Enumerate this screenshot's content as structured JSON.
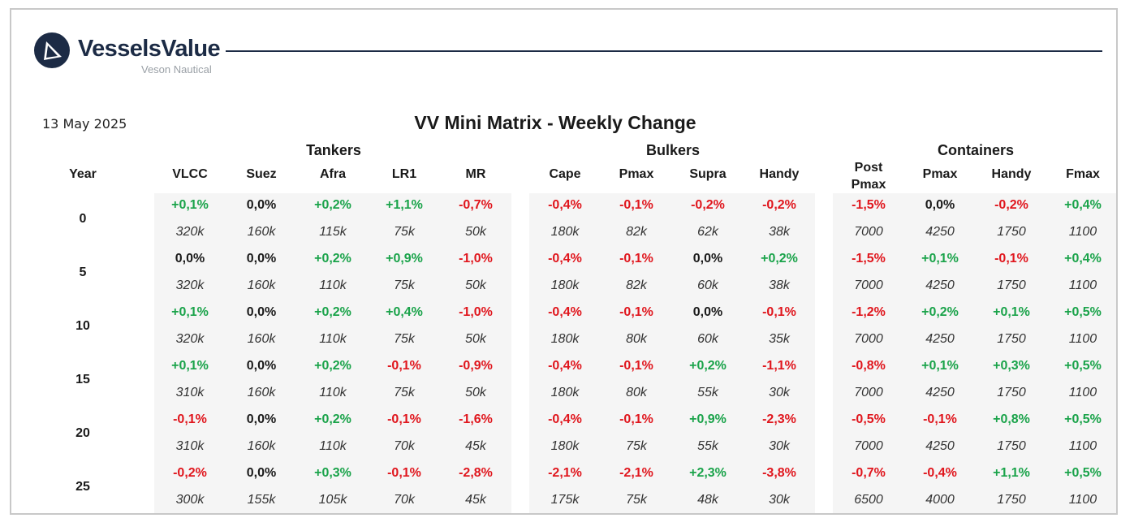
{
  "brand": {
    "name": "VesselsValue",
    "sub": "Veson Nautical"
  },
  "colors": {
    "positive": "#1aa34a",
    "negative": "#e0161d",
    "neutral": "#1a1a1a",
    "brand": "#1c2b45",
    "panel": "#f5f5f5"
  },
  "date": "13 May 2025",
  "title": "VV Mini Matrix - Weekly Change",
  "year_label": "Year",
  "groups": [
    "Tankers",
    "Bulkers",
    "Containers"
  ],
  "columns": [
    "VLCC",
    "Suez",
    "Afra",
    "LR1",
    "MR",
    "Cape",
    "Pmax",
    "Supra",
    "Handy",
    "Post Pmax",
    "Pmax",
    "Handy",
    "Fmax"
  ],
  "rows": [
    {
      "year": "0",
      "changes": [
        "+0,1%",
        "0,0%",
        "+0,2%",
        "+1,1%",
        "-0,7%",
        "-0,4%",
        "-0,1%",
        "-0,2%",
        "-0,2%",
        "-1,5%",
        "0,0%",
        "-0,2%",
        "+0,4%"
      ],
      "values": [
        "320k",
        "160k",
        "115k",
        "75k",
        "50k",
        "180k",
        "82k",
        "62k",
        "38k",
        "7000",
        "4250",
        "1750",
        "1100"
      ]
    },
    {
      "year": "5",
      "changes": [
        "0,0%",
        "0,0%",
        "+0,2%",
        "+0,9%",
        "-1,0%",
        "-0,4%",
        "-0,1%",
        "0,0%",
        "+0,2%",
        "-1,5%",
        "+0,1%",
        "-0,1%",
        "+0,4%"
      ],
      "values": [
        "320k",
        "160k",
        "110k",
        "75k",
        "50k",
        "180k",
        "82k",
        "60k",
        "38k",
        "7000",
        "4250",
        "1750",
        "1100"
      ]
    },
    {
      "year": "10",
      "changes": [
        "+0,1%",
        "0,0%",
        "+0,2%",
        "+0,4%",
        "-1,0%",
        "-0,4%",
        "-0,1%",
        "0,0%",
        "-0,1%",
        "-1,2%",
        "+0,2%",
        "+0,1%",
        "+0,5%"
      ],
      "values": [
        "320k",
        "160k",
        "110k",
        "75k",
        "50k",
        "180k",
        "80k",
        "60k",
        "35k",
        "7000",
        "4250",
        "1750",
        "1100"
      ]
    },
    {
      "year": "15",
      "changes": [
        "+0,1%",
        "0,0%",
        "+0,2%",
        "-0,1%",
        "-0,9%",
        "-0,4%",
        "-0,1%",
        "+0,2%",
        "-1,1%",
        "-0,8%",
        "+0,1%",
        "+0,3%",
        "+0,5%"
      ],
      "values": [
        "310k",
        "160k",
        "110k",
        "75k",
        "50k",
        "180k",
        "80k",
        "55k",
        "30k",
        "7000",
        "4250",
        "1750",
        "1100"
      ]
    },
    {
      "year": "20",
      "changes": [
        "-0,1%",
        "0,0%",
        "+0,2%",
        "-0,1%",
        "-1,6%",
        "-0,4%",
        "-0,1%",
        "+0,9%",
        "-2,3%",
        "-0,5%",
        "-0,1%",
        "+0,8%",
        "+0,5%"
      ],
      "values": [
        "310k",
        "160k",
        "110k",
        "70k",
        "45k",
        "180k",
        "75k",
        "55k",
        "30k",
        "7000",
        "4250",
        "1750",
        "1100"
      ]
    },
    {
      "year": "25",
      "changes": [
        "-0,2%",
        "0,0%",
        "+0,3%",
        "-0,1%",
        "-2,8%",
        "-2,1%",
        "-2,1%",
        "+2,3%",
        "-3,8%",
        "-0,7%",
        "-0,4%",
        "+1,1%",
        "+0,5%"
      ],
      "values": [
        "300k",
        "155k",
        "105k",
        "70k",
        "45k",
        "175k",
        "75k",
        "48k",
        "30k",
        "6500",
        "4000",
        "1750",
        "1100"
      ]
    }
  ]
}
